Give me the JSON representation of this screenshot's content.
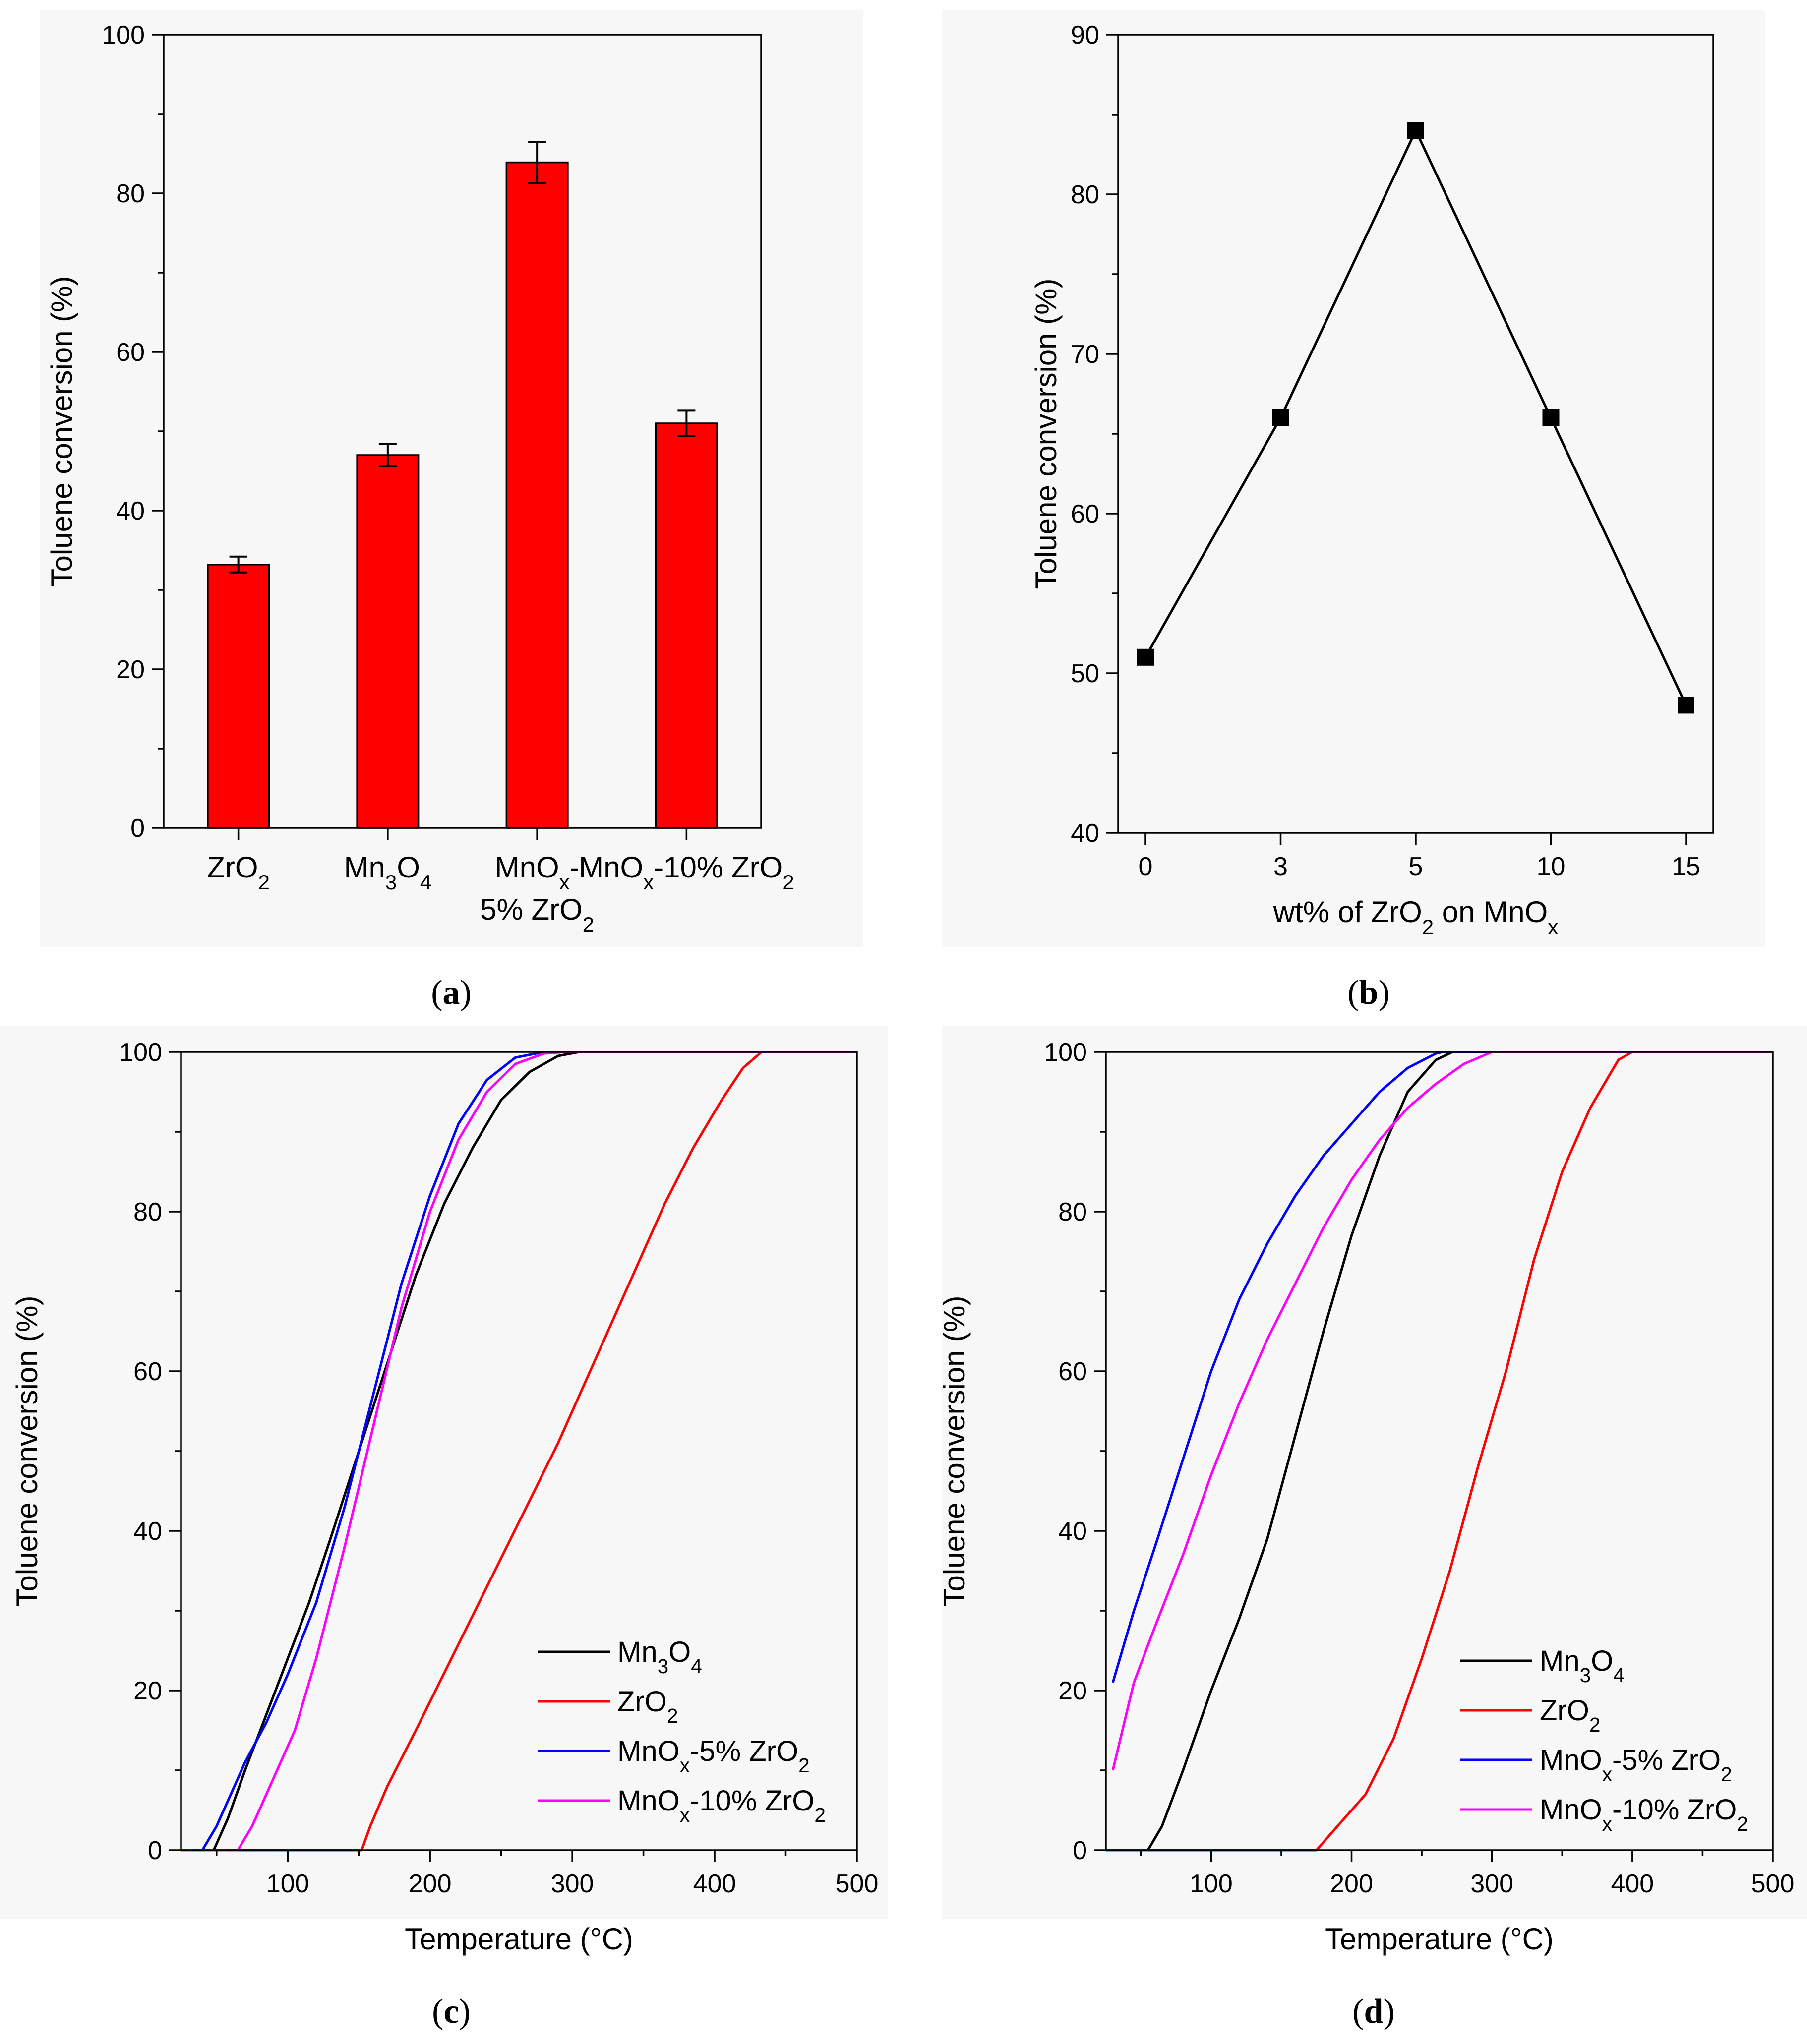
{
  "figure": {
    "panels": [
      "a",
      "b",
      "c",
      "d"
    ]
  },
  "chart_data": [
    {
      "id": "a",
      "type": "bar",
      "caption": "a",
      "ylabel": "Toluene conversion (%)",
      "xlabel": "",
      "ylim": [
        0,
        100
      ],
      "yticks": [
        0,
        20,
        40,
        60,
        80,
        100
      ],
      "bar_color": "#ff0000",
      "categories": [
        {
          "main": "ZrO",
          "sub": "2",
          "line2": ""
        },
        {
          "main": "Mn",
          "sub": "3",
          "main2": "O",
          "sub2": "4",
          "line2": ""
        },
        {
          "main": "MnO",
          "sub": "x",
          "tail": "-",
          "line2": "5% ZrO",
          "line2sub": "2"
        },
        {
          "main": "MnO",
          "sub": "x",
          "tail": "-10% ZrO",
          "tailsub": "2",
          "line2": ""
        }
      ],
      "category_names": [
        "ZrO2",
        "Mn3O4",
        "MnOx-5% ZrO2",
        "MnOx-10% ZrO2"
      ],
      "values": [
        33.2,
        47.0,
        83.9,
        51.0
      ],
      "errors": [
        1.0,
        1.4,
        2.6,
        1.6
      ]
    },
    {
      "id": "b",
      "type": "line",
      "caption": "b",
      "ylabel": "Toluene conversion (%)",
      "xlabel_parts": [
        "wt% of ZrO",
        "2",
        " on MnO",
        "x"
      ],
      "ylim": [
        40,
        90
      ],
      "yticks": [
        40,
        50,
        60,
        70,
        80,
        90
      ],
      "x_categories": [
        "0",
        "3",
        "5",
        "10",
        "15"
      ],
      "x": [
        0,
        3,
        5,
        10,
        15
      ],
      "y": [
        51,
        66,
        84,
        66,
        48
      ],
      "marker": "square",
      "color": "#000000"
    },
    {
      "id": "c",
      "type": "line",
      "caption": "c",
      "xlabel": "Temperature (°C)",
      "ylabel": "Toluene conversion (%)",
      "xlim": [
        25,
        500
      ],
      "ylim": [
        0,
        100
      ],
      "xticks": [
        100,
        200,
        300,
        400,
        500
      ],
      "yticks": [
        0,
        20,
        40,
        60,
        80,
        100
      ],
      "series": [
        {
          "name": "Mn3O4",
          "label_parts": [
            "Mn",
            "3",
            "O",
            "4"
          ],
          "color": "#000000",
          "x": [
            25,
            48,
            58,
            70,
            85,
            100,
            115,
            130,
            150,
            170,
            190,
            210,
            230,
            250,
            270,
            290,
            305,
            500
          ],
          "y": [
            0,
            0,
            4,
            10,
            17,
            24,
            31,
            39,
            50,
            61,
            72,
            81,
            88,
            94,
            97.5,
            99.5,
            100,
            100
          ]
        },
        {
          "name": "ZrO2",
          "label_parts": [
            "ZrO",
            "2"
          ],
          "color": "#ff0000",
          "x": [
            25,
            152,
            158,
            170,
            190,
            215,
            240,
            265,
            290,
            315,
            340,
            365,
            385,
            405,
            420,
            433,
            500
          ],
          "y": [
            0,
            0,
            3,
            8,
            15,
            24,
            33,
            42,
            51,
            61,
            71,
            81,
            88,
            94,
            98,
            100,
            100
          ]
        },
        {
          "name": "MnOx-5% ZrO2",
          "label_parts": [
            "MnO",
            "x",
            "-5% ZrO",
            "2"
          ],
          "color": "#0000ff",
          "x": [
            25,
            40,
            50,
            60,
            70,
            85,
            100,
            120,
            140,
            160,
            180,
            200,
            220,
            240,
            260,
            280,
            500
          ],
          "y": [
            0,
            0,
            3,
            7,
            11,
            16,
            22,
            31,
            43,
            57,
            71,
            82,
            91,
            96.5,
            99.3,
            100,
            100
          ]
        },
        {
          "name": "MnOx-10% ZrO2",
          "label_parts": [
            "MnO",
            "x",
            "-10% ZrO",
            "2"
          ],
          "color": "#ff00ff",
          "x": [
            25,
            65,
            75,
            90,
            105,
            120,
            140,
            160,
            180,
            200,
            220,
            240,
            260,
            280,
            295,
            500
          ],
          "y": [
            0,
            0,
            3,
            9,
            15,
            24,
            38,
            53,
            68,
            80,
            89,
            95,
            98.5,
            99.8,
            100,
            100
          ]
        }
      ],
      "legend": "bottom-right"
    },
    {
      "id": "d",
      "type": "line",
      "caption": "d",
      "xlabel": "Temperature (°C)",
      "ylabel": "Toluene conversion (%)",
      "xlim": [
        25,
        500
      ],
      "ylim": [
        0,
        100
      ],
      "xticks": [
        100,
        200,
        300,
        400,
        500
      ],
      "yticks": [
        0,
        20,
        40,
        60,
        80,
        100
      ],
      "series": [
        {
          "name": "Mn3O4",
          "label_parts": [
            "Mn",
            "3",
            "O",
            "4"
          ],
          "color": "#000000",
          "x": [
            25,
            55,
            65,
            80,
            100,
            120,
            140,
            160,
            180,
            200,
            220,
            240,
            260,
            272,
            500
          ],
          "y": [
            0,
            0,
            3,
            10,
            20,
            29,
            39,
            52,
            65,
            77,
            87,
            95,
            99,
            100,
            100
          ]
        },
        {
          "name": "ZrO2",
          "label_parts": [
            "ZrO",
            "2"
          ],
          "color": "#ff0000",
          "x": [
            25,
            175,
            190,
            210,
            230,
            250,
            270,
            290,
            310,
            330,
            350,
            370,
            390,
            400,
            500
          ],
          "y": [
            0,
            0,
            3,
            7,
            14,
            24,
            35,
            48,
            60,
            74,
            85,
            93,
            99,
            100,
            100
          ]
        },
        {
          "name": "MnOx-5% ZrO2",
          "label_parts": [
            "MnO",
            "x",
            "-5% ZrO",
            "2"
          ],
          "color": "#0000ff",
          "x": [
            30,
            45,
            60,
            80,
            100,
            120,
            140,
            160,
            180,
            200,
            220,
            240,
            260,
            265,
            500
          ],
          "y": [
            21,
            30,
            38,
            49,
            60,
            69,
            76,
            82,
            87,
            91,
            95,
            98,
            99.8,
            100,
            100
          ]
        },
        {
          "name": "MnOx-10% ZrO2",
          "label_parts": [
            "MnO",
            "x",
            "-10% ZrO",
            "2"
          ],
          "color": "#ff00ff",
          "x": [
            30,
            45,
            60,
            80,
            100,
            120,
            140,
            160,
            180,
            200,
            220,
            240,
            260,
            280,
            300,
            500
          ],
          "y": [
            10,
            21,
            28,
            37,
            47,
            56,
            64,
            71,
            78,
            84,
            89,
            93,
            96,
            98.5,
            100,
            100
          ]
        }
      ],
      "legend": "bottom-right"
    }
  ]
}
